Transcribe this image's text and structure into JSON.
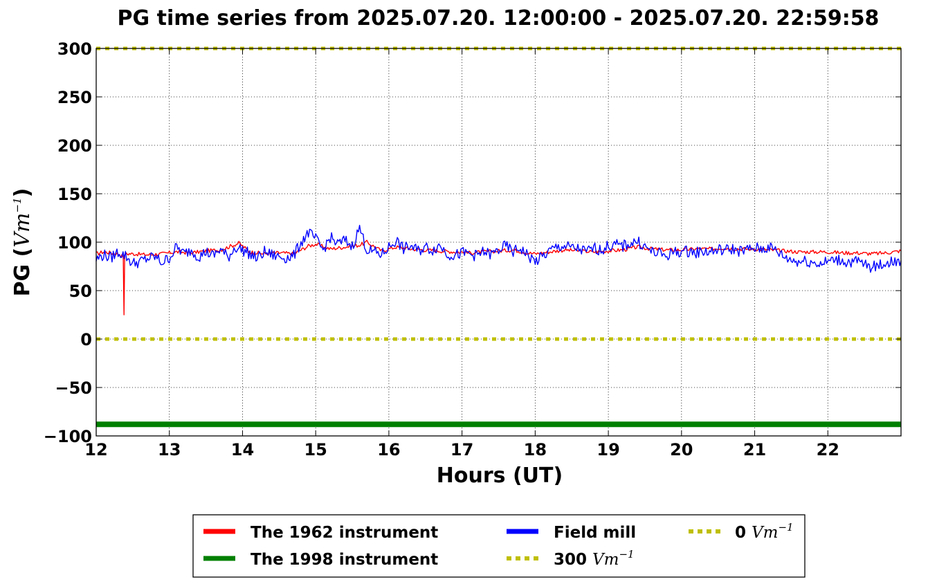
{
  "chart_data": {
    "type": "line",
    "title": "PG time series from 2025.07.20. 12:00:00 - 2025.07.20. 22:59:58",
    "xlabel": "Hours (UT)",
    "ylabel": {
      "text": "PG (",
      "unit": "Vm",
      "exp": "−1",
      "close": ")"
    },
    "xlim": [
      12,
      23
    ],
    "ylim": [
      -100,
      300
    ],
    "x_ticks": [
      12,
      13,
      14,
      15,
      16,
      17,
      18,
      19,
      20,
      21,
      22
    ],
    "y_ticks": [
      -100,
      -50,
      0,
      50,
      100,
      150,
      200,
      250,
      300
    ],
    "grid": true,
    "legend_position": "bottom-center",
    "series": [
      {
        "name": "The 1962 instrument",
        "color": "#ff0000",
        "x": [
          12.0,
          12.1,
          12.2,
          12.3,
          12.37,
          12.38,
          12.39,
          12.5,
          12.7,
          12.9,
          13.1,
          13.3,
          13.5,
          13.7,
          13.95,
          14.1,
          14.3,
          14.5,
          14.7,
          14.9,
          15.0,
          15.2,
          15.4,
          15.6,
          15.7,
          15.9,
          16.1,
          16.3,
          16.5,
          16.7,
          16.9,
          17.1,
          17.3,
          17.5,
          17.7,
          17.9,
          18.0,
          18.2,
          18.4,
          18.6,
          18.8,
          19.0,
          19.2,
          19.4,
          19.6,
          19.8,
          20.0,
          20.2,
          20.4,
          20.6,
          20.8,
          21.0,
          21.2,
          21.4,
          21.6,
          21.8,
          22.0,
          22.2,
          22.4,
          22.6,
          22.8,
          23.0
        ],
        "y": [
          88,
          90,
          89,
          88,
          85,
          25,
          88,
          88,
          87,
          88,
          90,
          89,
          91,
          92,
          99,
          90,
          88,
          89,
          88,
          96,
          98,
          93,
          95,
          97,
          100,
          91,
          95,
          93,
          92,
          91,
          90,
          89,
          90,
          91,
          92,
          89,
          88,
          90,
          92,
          91,
          90,
          91,
          92,
          95,
          93,
          92,
          92,
          93,
          93,
          94,
          93,
          93,
          92,
          91,
          90,
          90,
          90,
          89,
          89,
          88,
          89,
          91
        ]
      },
      {
        "name": "The 1998 instrument",
        "color": "#008000",
        "x": [
          12.0,
          23.0
        ],
        "y": [
          -88,
          -88
        ]
      },
      {
        "name": "Field mill",
        "color": "#0000ff",
        "x": [
          12.0,
          12.1,
          12.2,
          12.3,
          12.4,
          12.5,
          12.6,
          12.7,
          12.8,
          12.9,
          13.0,
          13.1,
          13.2,
          13.3,
          13.4,
          13.5,
          13.6,
          13.7,
          13.8,
          13.9,
          14.0,
          14.1,
          14.2,
          14.3,
          14.4,
          14.5,
          14.6,
          14.7,
          14.8,
          14.9,
          15.0,
          15.1,
          15.2,
          15.3,
          15.4,
          15.5,
          15.6,
          15.7,
          15.8,
          15.9,
          16.0,
          16.1,
          16.2,
          16.3,
          16.4,
          16.5,
          16.6,
          16.7,
          16.8,
          16.9,
          17.0,
          17.1,
          17.2,
          17.3,
          17.4,
          17.5,
          17.6,
          17.7,
          17.8,
          17.9,
          18.0,
          18.1,
          18.2,
          18.3,
          18.4,
          18.5,
          18.6,
          18.7,
          18.8,
          18.9,
          19.0,
          19.1,
          19.2,
          19.3,
          19.4,
          19.5,
          19.6,
          19.7,
          19.8,
          19.9,
          20.0,
          20.1,
          20.2,
          20.3,
          20.4,
          20.5,
          20.6,
          20.7,
          20.8,
          20.9,
          21.0,
          21.1,
          21.2,
          21.3,
          21.4,
          21.5,
          21.6,
          21.7,
          21.8,
          21.9,
          22.0,
          22.1,
          22.2,
          22.3,
          22.4,
          22.5,
          22.6,
          22.7,
          22.8,
          22.9,
          23.0
        ],
        "y": [
          82,
          87,
          84,
          90,
          86,
          78,
          80,
          83,
          85,
          79,
          84,
          95,
          88,
          92,
          85,
          90,
          86,
          93,
          84,
          95,
          92,
          88,
          83,
          90,
          87,
          85,
          84,
          86,
          100,
          110,
          103,
          92,
          105,
          98,
          102,
          96,
          115,
          92,
          90,
          87,
          95,
          102,
          93,
          96,
          91,
          95,
          92,
          97,
          88,
          86,
          89,
          88,
          86,
          90,
          87,
          92,
          96,
          90,
          94,
          86,
          80,
          85,
          91,
          95,
          96,
          94,
          93,
          90,
          94,
          92,
          96,
          97,
          96,
          99,
          101,
          95,
          90,
          88,
          86,
          90,
          90,
          91,
          89,
          91,
          90,
          92,
          92,
          93,
          91,
          92,
          94,
          93,
          95,
          91,
          85,
          82,
          80,
          81,
          79,
          78,
          80,
          82,
          81,
          79,
          80,
          77,
          74,
          76,
          79,
          80,
          81
        ]
      },
      {
        "name": "300 Vm−1",
        "legend_text": "300 ",
        "color": "#bfbf00",
        "style": "dotted",
        "x": [
          12.0,
          23.0
        ],
        "y": [
          300,
          300
        ]
      },
      {
        "name": "0 Vm−1",
        "legend_text": "0 ",
        "color": "#bfbf00",
        "style": "dotted",
        "x": [
          12.0,
          23.0
        ],
        "y": [
          0,
          0
        ]
      }
    ]
  },
  "legend": {
    "unit": "Vm",
    "exp": "−1"
  },
  "colors": {
    "red": "#ff0000",
    "green": "#008000",
    "blue": "#0000ff",
    "olive": "#bfbf00"
  }
}
